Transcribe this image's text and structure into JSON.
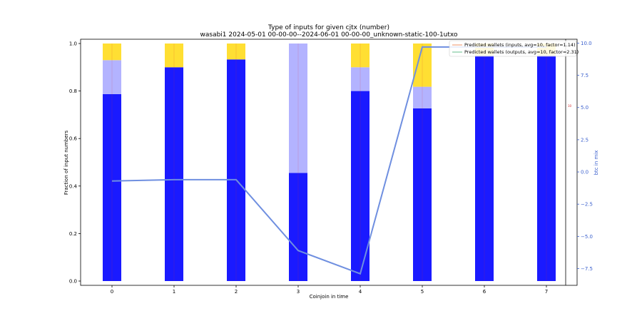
{
  "chart_data": {
    "type": "bar",
    "title": "Type of inputs for given cjtx (number)",
    "subtitle": "wasabi1 2024-05-01 00-00-00--2024-06-01 00-00-00_unknown-static-100-1utxo",
    "xlabel": "Coinjoin in time",
    "ylabel": "Fraction of input numbers",
    "y2label": "btc in mix",
    "categories": [
      "0",
      "1",
      "2",
      "3",
      "4",
      "5",
      "6",
      "7"
    ],
    "ylim": [
      0,
      1.0
    ],
    "yticks": [
      0.0,
      0.2,
      0.4,
      0.6,
      0.8,
      1.0
    ],
    "ytick_labels": [
      "0.0",
      "0.2",
      "0.4",
      "0.6",
      "0.8",
      "1.0"
    ],
    "y2lim": [
      -8.8,
      10.3
    ],
    "y2ticks": [
      -7.5,
      -5.0,
      -2.5,
      0.0,
      2.5,
      5.0,
      7.5,
      10.0
    ],
    "y2tick_labels": [
      "−7.5",
      "−5.0",
      "−2.5",
      "0.0",
      "2.5",
      "5.0",
      "7.5",
      "10.0"
    ],
    "y3_label": "10",
    "stacked_series": [
      {
        "name": "blue",
        "color": "#1a1aff",
        "values": [
          0.787,
          0.9,
          0.933,
          0.455,
          0.8,
          0.727,
          0.95,
          0.95
        ]
      },
      {
        "name": "light blue",
        "color": "#b3b3ff",
        "values": [
          0.143,
          0.0,
          0.0,
          0.545,
          0.1,
          0.091,
          0.0,
          0.0
        ]
      },
      {
        "name": "yellow",
        "color": "#ffdf33",
        "values": [
          0.07,
          0.1,
          0.067,
          0.0,
          0.1,
          0.182,
          0.05,
          0.05
        ]
      }
    ],
    "line_series": {
      "name": "btc in mix",
      "color": "#6f8fe0",
      "values": [
        -0.7,
        -0.6,
        -0.6,
        -6.1,
        -7.9,
        9.7,
        9.7,
        9.7
      ]
    },
    "legend": [
      {
        "label": "Predicted wallets (inputs, avg=10, factor=1.14)",
        "color": "#f4a582"
      },
      {
        "label": "Predicted wallets (outputs, avg=10, factor=2.31)",
        "color": "#7fc9a0"
      }
    ],
    "legend_position": "top-right"
  }
}
